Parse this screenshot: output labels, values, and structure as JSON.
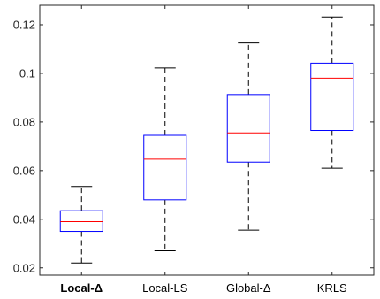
{
  "chart_data": {
    "type": "box",
    "title": "",
    "xlabel": "",
    "ylabel": "",
    "ylim": [
      0.017,
      0.128
    ],
    "yticks": [
      0.02,
      0.04,
      0.06,
      0.08,
      0.1,
      0.12
    ],
    "ytick_labels": [
      "0.02",
      "0.04",
      "0.06",
      "0.08",
      "0.1",
      "0.12"
    ],
    "grid": false,
    "colors": {
      "box": "#0000ff",
      "median": "#ff0000",
      "whisker": "#000000",
      "axes": "#262626"
    },
    "categories": [
      {
        "label": "Local-Δ",
        "bold": true
      },
      {
        "label": "Local-LS",
        "bold": false
      },
      {
        "label": "Global-Δ",
        "bold": false
      },
      {
        "label": "KRLS",
        "bold": false
      }
    ],
    "boxes": [
      {
        "whisker_low": 0.022,
        "q1": 0.035,
        "median": 0.039,
        "q3": 0.0435,
        "whisker_high": 0.0535
      },
      {
        "whisker_low": 0.027,
        "q1": 0.048,
        "median": 0.0647,
        "q3": 0.0745,
        "whisker_high": 0.1022
      },
      {
        "whisker_low": 0.0355,
        "q1": 0.0635,
        "median": 0.0755,
        "q3": 0.0913,
        "whisker_high": 0.1125
      },
      {
        "whisker_low": 0.061,
        "q1": 0.0765,
        "median": 0.098,
        "q3": 0.1042,
        "whisker_high": 0.1232
      }
    ]
  }
}
